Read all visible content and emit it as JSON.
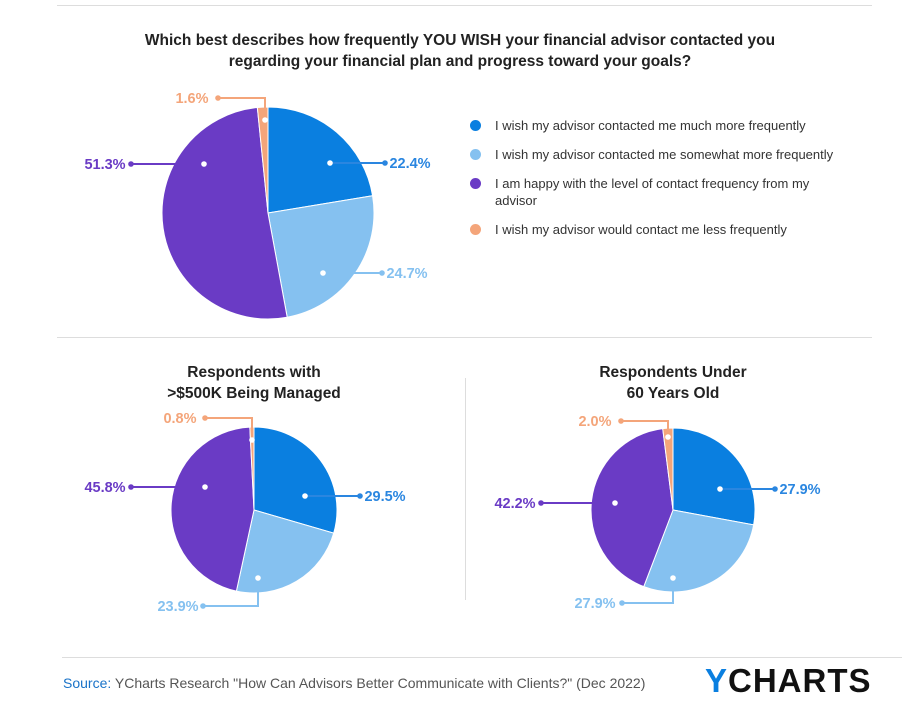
{
  "colors": {
    "much_more": "#0a7fe0",
    "somewhat_more": "#85c1f0",
    "happy": "#6a3bc5",
    "less": "#f4a57a"
  },
  "chart_data": [
    {
      "type": "pie",
      "title": "Which best describes how frequently YOU WISH your financial advisor contacted you regarding your financial plan and progress toward your goals?",
      "categories": [
        "I wish my advisor contacted me much more frequently",
        "I wish my advisor contacted me somewhat more frequently",
        "I am happy with the level of contact frequency from my advisor",
        "I wish my advisor would contact me less frequently"
      ],
      "values": [
        22.4,
        24.7,
        51.3,
        1.6
      ],
      "labels": [
        "22.4%",
        "24.7%",
        "51.3%",
        "1.6%"
      ]
    },
    {
      "type": "pie",
      "title": "Respondents with >$500K Being Managed",
      "title_lines": [
        "Respondents with",
        ">$500K Being Managed"
      ],
      "categories": [
        "much more",
        "somewhat more",
        "happy",
        "less"
      ],
      "values": [
        29.5,
        23.9,
        45.8,
        0.8
      ],
      "labels": [
        "29.5%",
        "23.9%",
        "45.8%",
        "0.8%"
      ]
    },
    {
      "type": "pie",
      "title": "Respondents Under 60 Years Old",
      "title_lines": [
        "Respondents Under",
        "60 Years Old"
      ],
      "categories": [
        "much more",
        "somewhat more",
        "happy",
        "less"
      ],
      "values": [
        27.9,
        27.9,
        42.2,
        2.0
      ],
      "labels": [
        "27.9%",
        "27.9%",
        "42.2%",
        "2.0%"
      ]
    }
  ],
  "main_title_lines": [
    "Which best describes how frequently YOU WISH your financial advisor contacted you",
    "regarding your financial plan and progress toward your goals?"
  ],
  "legend": [
    "I wish my advisor contacted me much more frequently",
    "I wish my advisor contacted me somewhat more frequently",
    "I am happy with the level of contact frequency from my advisor",
    "I wish my advisor would contact me less frequently"
  ],
  "footer": {
    "source_label": "Source:",
    "source_text": " YCharts Research \"How Can Advisors Better Communicate with Clients?\" (Dec 2022)"
  },
  "logo": {
    "y": "Y",
    "rest": "CHARTS"
  }
}
